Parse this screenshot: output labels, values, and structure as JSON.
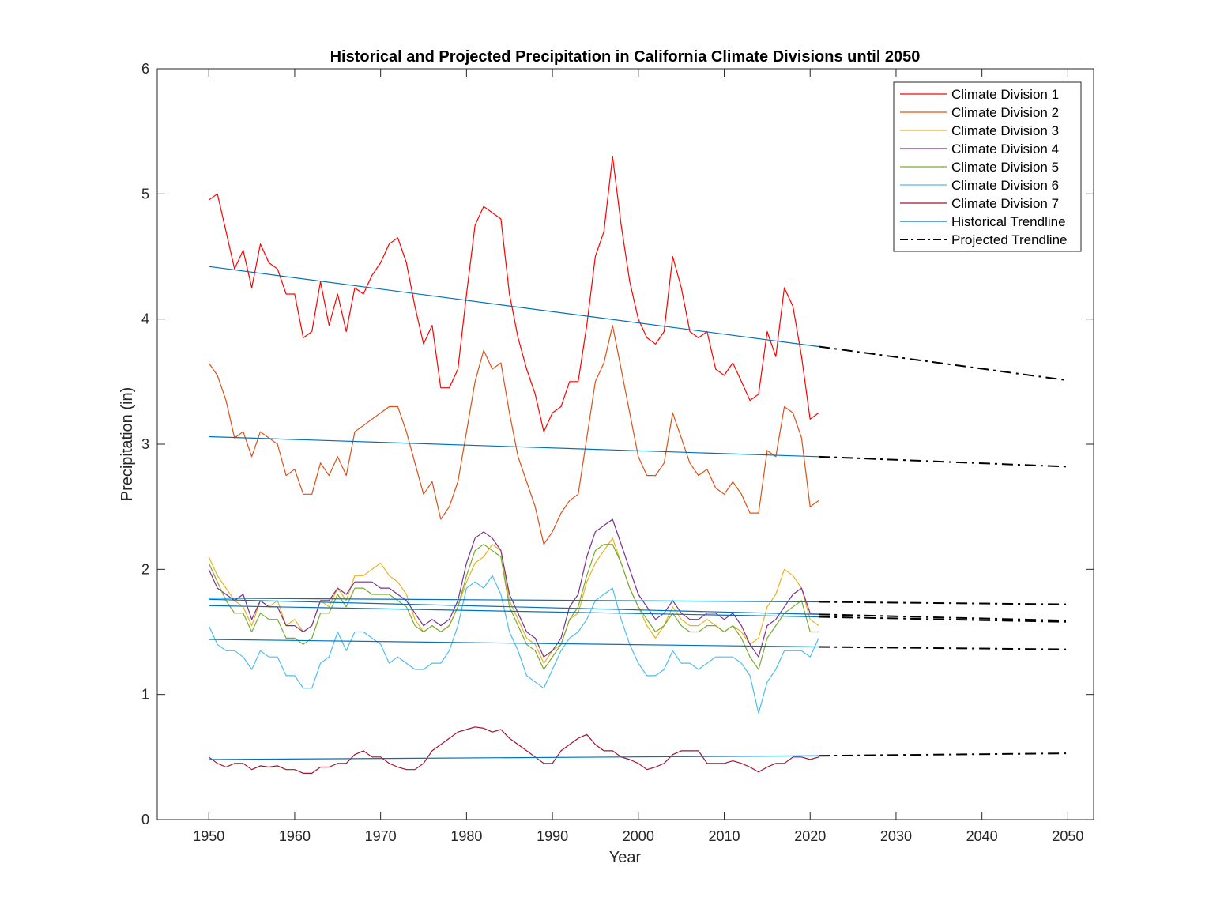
{
  "chart_data": {
    "type": "line",
    "title": "Historical and Projected Precipitation in California Climate Divisions until 2050",
    "xlabel": "Year",
    "ylabel": "Precipitation (in)",
    "xlim": [
      1944,
      2053
    ],
    "ylim": [
      0,
      6
    ],
    "xticks": [
      1950,
      1960,
      1970,
      1980,
      1990,
      2000,
      2010,
      2020,
      2030,
      2040,
      2050
    ],
    "yticks": [
      0,
      1,
      2,
      3,
      4,
      5,
      6
    ],
    "grid": false,
    "legend_position": "top-right",
    "series": [
      {
        "name": "Climate Division 1",
        "color": "#ff0000",
        "x": [
          1950,
          1951,
          1952,
          1953,
          1954,
          1955,
          1956,
          1957,
          1958,
          1959,
          1960,
          1961,
          1962,
          1963,
          1964,
          1965,
          1966,
          1967,
          1968,
          1969,
          1970,
          1971,
          1972,
          1973,
          1974,
          1975,
          1976,
          1977,
          1978,
          1979,
          1980,
          1981,
          1982,
          1983,
          1984,
          1985,
          1986,
          1987,
          1988,
          1989,
          1990,
          1991,
          1992,
          1993,
          1994,
          1995,
          1996,
          1997,
          1998,
          1999,
          2000,
          2001,
          2002,
          2003,
          2004,
          2005,
          2006,
          2007,
          2008,
          2009,
          2010,
          2011,
          2012,
          2013,
          2014,
          2015,
          2016,
          2017,
          2018,
          2019,
          2020,
          2021
        ],
        "y": [
          4.95,
          5.0,
          4.7,
          4.4,
          4.55,
          4.25,
          4.6,
          4.45,
          4.4,
          4.2,
          4.2,
          3.85,
          3.9,
          4.3,
          3.95,
          4.2,
          3.9,
          4.25,
          4.2,
          4.35,
          4.45,
          4.6,
          4.65,
          4.45,
          4.1,
          3.8,
          3.95,
          3.45,
          3.45,
          3.6,
          4.2,
          4.75,
          4.9,
          4.85,
          4.8,
          4.2,
          3.85,
          3.6,
          3.4,
          3.1,
          3.25,
          3.3,
          3.5,
          3.5,
          3.95,
          4.5,
          4.7,
          5.3,
          4.75,
          4.3,
          4.0,
          3.85,
          3.8,
          3.9,
          4.5,
          4.25,
          3.9,
          3.85,
          3.9,
          3.6,
          3.55,
          3.65,
          3.5,
          3.35,
          3.4,
          3.9,
          3.7,
          4.25,
          4.1,
          3.7,
          3.2,
          3.25
        ]
      },
      {
        "name": "Climate Division 2",
        "color": "#d95319",
        "x": [
          1950,
          1951,
          1952,
          1953,
          1954,
          1955,
          1956,
          1957,
          1958,
          1959,
          1960,
          1961,
          1962,
          1963,
          1964,
          1965,
          1966,
          1967,
          1968,
          1969,
          1970,
          1971,
          1972,
          1973,
          1974,
          1975,
          1976,
          1977,
          1978,
          1979,
          1980,
          1981,
          1982,
          1983,
          1984,
          1985,
          1986,
          1987,
          1988,
          1989,
          1990,
          1991,
          1992,
          1993,
          1994,
          1995,
          1996,
          1997,
          1998,
          1999,
          2000,
          2001,
          2002,
          2003,
          2004,
          2005,
          2006,
          2007,
          2008,
          2009,
          2010,
          2011,
          2012,
          2013,
          2014,
          2015,
          2016,
          2017,
          2018,
          2019,
          2020,
          2021
        ],
        "y": [
          3.65,
          3.55,
          3.35,
          3.05,
          3.1,
          2.9,
          3.1,
          3.05,
          3.0,
          2.75,
          2.8,
          2.6,
          2.6,
          2.85,
          2.75,
          2.9,
          2.75,
          3.1,
          3.15,
          3.2,
          3.25,
          3.3,
          3.3,
          3.1,
          2.85,
          2.6,
          2.7,
          2.4,
          2.5,
          2.7,
          3.1,
          3.5,
          3.75,
          3.6,
          3.65,
          3.25,
          2.9,
          2.7,
          2.5,
          2.2,
          2.3,
          2.45,
          2.55,
          2.6,
          3.05,
          3.5,
          3.65,
          3.95,
          3.6,
          3.25,
          2.9,
          2.75,
          2.75,
          2.85,
          3.25,
          3.05,
          2.85,
          2.75,
          2.8,
          2.65,
          2.6,
          2.7,
          2.6,
          2.45,
          2.45,
          2.95,
          2.9,
          3.3,
          3.25,
          3.05,
          2.5,
          2.55
        ]
      },
      {
        "name": "Climate Division 3",
        "color": "#edb120",
        "x": [
          1950,
          1951,
          1952,
          1953,
          1954,
          1955,
          1956,
          1957,
          1958,
          1959,
          1960,
          1961,
          1962,
          1963,
          1964,
          1965,
          1966,
          1967,
          1968,
          1969,
          1970,
          1971,
          1972,
          1973,
          1974,
          1975,
          1976,
          1977,
          1978,
          1979,
          1980,
          1981,
          1982,
          1983,
          1984,
          1985,
          1986,
          1987,
          1988,
          1989,
          1990,
          1991,
          1992,
          1993,
          1994,
          1995,
          1996,
          1997,
          1998,
          1999,
          2000,
          2001,
          2002,
          2003,
          2004,
          2005,
          2006,
          2007,
          2008,
          2009,
          2010,
          2011,
          2012,
          2013,
          2014,
          2015,
          2016,
          2017,
          2018,
          2019,
          2020,
          2021
        ],
        "y": [
          2.1,
          1.95,
          1.85,
          1.75,
          1.7,
          1.55,
          1.75,
          1.7,
          1.75,
          1.55,
          1.6,
          1.5,
          1.55,
          1.75,
          1.7,
          1.85,
          1.75,
          1.95,
          1.95,
          2.0,
          2.05,
          1.95,
          1.9,
          1.8,
          1.6,
          1.5,
          1.55,
          1.5,
          1.55,
          1.7,
          1.9,
          2.05,
          2.1,
          2.2,
          2.15,
          1.75,
          1.6,
          1.45,
          1.4,
          1.25,
          1.35,
          1.4,
          1.6,
          1.65,
          1.9,
          2.05,
          2.15,
          2.25,
          2.05,
          1.85,
          1.7,
          1.55,
          1.45,
          1.55,
          1.7,
          1.6,
          1.55,
          1.55,
          1.6,
          1.55,
          1.5,
          1.55,
          1.5,
          1.4,
          1.45,
          1.7,
          1.8,
          2.0,
          1.95,
          1.85,
          1.6,
          1.55
        ]
      },
      {
        "name": "Climate Division 4",
        "color": "#7e2f8e",
        "x": [
          1950,
          1951,
          1952,
          1953,
          1954,
          1955,
          1956,
          1957,
          1958,
          1959,
          1960,
          1961,
          1962,
          1963,
          1964,
          1965,
          1966,
          1967,
          1968,
          1969,
          1970,
          1971,
          1972,
          1973,
          1974,
          1975,
          1976,
          1977,
          1978,
          1979,
          1980,
          1981,
          1982,
          1983,
          1984,
          1985,
          1986,
          1987,
          1988,
          1989,
          1990,
          1991,
          1992,
          1993,
          1994,
          1995,
          1996,
          1997,
          1998,
          1999,
          2000,
          2001,
          2002,
          2003,
          2004,
          2005,
          2006,
          2007,
          2008,
          2009,
          2010,
          2011,
          2012,
          2013,
          2014,
          2015,
          2016,
          2017,
          2018,
          2019,
          2020,
          2021
        ],
        "y": [
          2.0,
          1.85,
          1.8,
          1.75,
          1.8,
          1.6,
          1.75,
          1.7,
          1.7,
          1.55,
          1.55,
          1.5,
          1.55,
          1.75,
          1.75,
          1.85,
          1.8,
          1.9,
          1.9,
          1.9,
          1.85,
          1.85,
          1.8,
          1.75,
          1.65,
          1.55,
          1.6,
          1.55,
          1.6,
          1.75,
          2.05,
          2.25,
          2.3,
          2.25,
          2.15,
          1.8,
          1.65,
          1.5,
          1.45,
          1.3,
          1.35,
          1.45,
          1.7,
          1.8,
          2.1,
          2.3,
          2.35,
          2.4,
          2.2,
          2.0,
          1.8,
          1.7,
          1.6,
          1.65,
          1.75,
          1.65,
          1.6,
          1.6,
          1.65,
          1.65,
          1.6,
          1.65,
          1.55,
          1.4,
          1.3,
          1.55,
          1.6,
          1.7,
          1.8,
          1.85,
          1.65,
          1.65
        ]
      },
      {
        "name": "Climate Division 5",
        "color": "#77ac30",
        "x": [
          1950,
          1951,
          1952,
          1953,
          1954,
          1955,
          1956,
          1957,
          1958,
          1959,
          1960,
          1961,
          1962,
          1963,
          1964,
          1965,
          1966,
          1967,
          1968,
          1969,
          1970,
          1971,
          1972,
          1973,
          1974,
          1975,
          1976,
          1977,
          1978,
          1979,
          1980,
          1981,
          1982,
          1983,
          1984,
          1985,
          1986,
          1987,
          1988,
          1989,
          1990,
          1991,
          1992,
          1993,
          1994,
          1995,
          1996,
          1997,
          1998,
          1999,
          2000,
          2001,
          2002,
          2003,
          2004,
          2005,
          2006,
          2007,
          2008,
          2009,
          2010,
          2011,
          2012,
          2013,
          2014,
          2015,
          2016,
          2017,
          2018,
          2019,
          2020,
          2021
        ],
        "y": [
          2.05,
          1.9,
          1.75,
          1.65,
          1.65,
          1.5,
          1.65,
          1.6,
          1.6,
          1.45,
          1.45,
          1.4,
          1.45,
          1.65,
          1.65,
          1.8,
          1.7,
          1.85,
          1.85,
          1.8,
          1.8,
          1.8,
          1.75,
          1.7,
          1.55,
          1.5,
          1.55,
          1.5,
          1.55,
          1.7,
          1.95,
          2.15,
          2.2,
          2.15,
          2.1,
          1.7,
          1.55,
          1.4,
          1.35,
          1.2,
          1.3,
          1.4,
          1.6,
          1.7,
          1.95,
          2.15,
          2.2,
          2.2,
          2.05,
          1.85,
          1.7,
          1.6,
          1.5,
          1.55,
          1.65,
          1.55,
          1.5,
          1.5,
          1.55,
          1.55,
          1.5,
          1.55,
          1.45,
          1.3,
          1.2,
          1.45,
          1.55,
          1.65,
          1.7,
          1.75,
          1.5,
          1.5
        ]
      },
      {
        "name": "Climate Division 6",
        "color": "#4dbeee",
        "x": [
          1950,
          1951,
          1952,
          1953,
          1954,
          1955,
          1956,
          1957,
          1958,
          1959,
          1960,
          1961,
          1962,
          1963,
          1964,
          1965,
          1966,
          1967,
          1968,
          1969,
          1970,
          1971,
          1972,
          1973,
          1974,
          1975,
          1976,
          1977,
          1978,
          1979,
          1980,
          1981,
          1982,
          1983,
          1984,
          1985,
          1986,
          1987,
          1988,
          1989,
          1990,
          1991,
          1992,
          1993,
          1994,
          1995,
          1996,
          1997,
          1998,
          1999,
          2000,
          2001,
          2002,
          2003,
          2004,
          2005,
          2006,
          2007,
          2008,
          2009,
          2010,
          2011,
          2012,
          2013,
          2014,
          2015,
          2016,
          2017,
          2018,
          2019,
          2020,
          2021
        ],
        "y": [
          1.55,
          1.4,
          1.35,
          1.35,
          1.3,
          1.2,
          1.35,
          1.3,
          1.3,
          1.15,
          1.15,
          1.05,
          1.05,
          1.25,
          1.3,
          1.5,
          1.35,
          1.5,
          1.5,
          1.45,
          1.4,
          1.25,
          1.3,
          1.25,
          1.2,
          1.2,
          1.25,
          1.25,
          1.35,
          1.55,
          1.85,
          1.9,
          1.85,
          1.95,
          1.8,
          1.5,
          1.35,
          1.15,
          1.1,
          1.05,
          1.2,
          1.35,
          1.45,
          1.5,
          1.6,
          1.75,
          1.8,
          1.85,
          1.6,
          1.4,
          1.25,
          1.15,
          1.15,
          1.2,
          1.35,
          1.25,
          1.25,
          1.2,
          1.25,
          1.3,
          1.3,
          1.3,
          1.25,
          1.15,
          0.85,
          1.1,
          1.2,
          1.35,
          1.35,
          1.35,
          1.3,
          1.45
        ]
      },
      {
        "name": "Climate Division 7",
        "color": "#a2142f",
        "x": [
          1950,
          1951,
          1952,
          1953,
          1954,
          1955,
          1956,
          1957,
          1958,
          1959,
          1960,
          1961,
          1962,
          1963,
          1964,
          1965,
          1966,
          1967,
          1968,
          1969,
          1970,
          1971,
          1972,
          1973,
          1974,
          1975,
          1976,
          1977,
          1978,
          1979,
          1980,
          1981,
          1982,
          1983,
          1984,
          1985,
          1986,
          1987,
          1988,
          1989,
          1990,
          1991,
          1992,
          1993,
          1994,
          1995,
          1996,
          1997,
          1998,
          1999,
          2000,
          2001,
          2002,
          2003,
          2004,
          2005,
          2006,
          2007,
          2008,
          2009,
          2010,
          2011,
          2012,
          2013,
          2014,
          2015,
          2016,
          2017,
          2018,
          2019,
          2020,
          2021
        ],
        "y": [
          0.5,
          0.45,
          0.42,
          0.45,
          0.45,
          0.4,
          0.43,
          0.42,
          0.43,
          0.4,
          0.4,
          0.37,
          0.37,
          0.42,
          0.42,
          0.45,
          0.45,
          0.52,
          0.55,
          0.5,
          0.5,
          0.45,
          0.42,
          0.4,
          0.4,
          0.45,
          0.55,
          0.6,
          0.65,
          0.7,
          0.72,
          0.74,
          0.73,
          0.7,
          0.72,
          0.65,
          0.6,
          0.55,
          0.5,
          0.45,
          0.45,
          0.55,
          0.6,
          0.65,
          0.68,
          0.6,
          0.55,
          0.55,
          0.5,
          0.48,
          0.45,
          0.4,
          0.42,
          0.45,
          0.52,
          0.55,
          0.55,
          0.55,
          0.45,
          0.45,
          0.45,
          0.47,
          0.45,
          0.42,
          0.38,
          0.42,
          0.45,
          0.45,
          0.5,
          0.5,
          0.48,
          0.5
        ]
      }
    ],
    "historical_trendlines": {
      "name": "Historical Trendline",
      "color": "#0072bd",
      "x": [
        1950,
        2021
      ],
      "lines": [
        [
          4.42,
          3.78
        ],
        [
          3.06,
          2.9
        ],
        [
          1.77,
          1.74
        ],
        [
          1.76,
          1.64
        ],
        [
          1.71,
          1.62
        ],
        [
          1.44,
          1.38
        ],
        [
          0.48,
          0.51
        ]
      ]
    },
    "projected_trendlines": {
      "name": "Projected Trendline",
      "color": "#000000",
      "x": [
        2021,
        2050
      ],
      "lines": [
        [
          3.78,
          3.51
        ],
        [
          2.9,
          2.82
        ],
        [
          1.74,
          1.72
        ],
        [
          1.64,
          1.59
        ],
        [
          1.62,
          1.58
        ],
        [
          1.38,
          1.36
        ],
        [
          0.51,
          0.53
        ]
      ]
    }
  }
}
